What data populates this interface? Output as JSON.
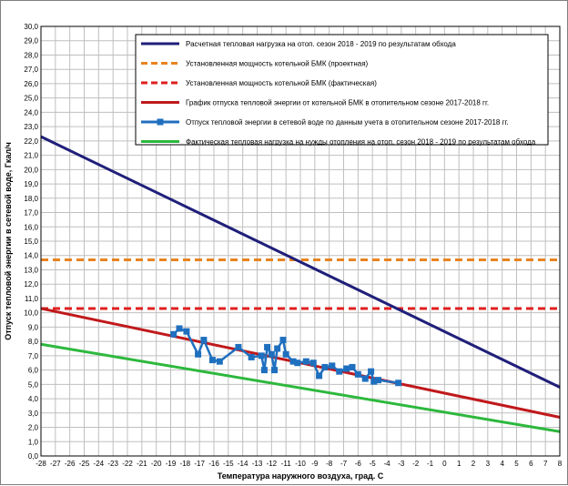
{
  "chart_data": {
    "type": "line",
    "title": "",
    "xlabel": "Температура наружного воздуха, град. С",
    "ylabel": "Отпуск тепловой энергии в сетевой воде, Гкал/ч",
    "xlim": [
      -28,
      8
    ],
    "ylim": [
      0,
      30
    ],
    "x_ticks": [
      "-28",
      "-27",
      "-26",
      "-25",
      "-24",
      "-23",
      "-22",
      "-21",
      "-20",
      "-19",
      "-18",
      "-17",
      "-16",
      "-15",
      "-14",
      "-13",
      "-12",
      "-11",
      "-10",
      "-9",
      "-8",
      "-7",
      "-6",
      "-5",
      "-4",
      "-3",
      "-2",
      "-1",
      "0",
      "1",
      "2",
      "3",
      "4",
      "5",
      "6",
      "7",
      "8"
    ],
    "y_ticks": [
      "0,0",
      "1,0",
      "2,0",
      "3,0",
      "4,0",
      "5,0",
      "6,0",
      "7,0",
      "8,0",
      "9,0",
      "10,0",
      "11,0",
      "12,0",
      "13,0",
      "14,0",
      "15,0",
      "16,0",
      "17,0",
      "18,0",
      "19,0",
      "20,0",
      "21,0",
      "22,0",
      "23,0",
      "24,0",
      "25,0",
      "26,0",
      "27,0",
      "28,0",
      "29,0",
      "30,0"
    ],
    "grid": true,
    "legend_position": "top-right",
    "series": [
      {
        "name": "Расчетная тепловая нагрузка на  отоп. сезон 2018 - 2019 по результатам обхода",
        "style": "solid",
        "color": "#1f1f7a",
        "x": [
          -28,
          8
        ],
        "y": [
          22.3,
          4.8
        ]
      },
      {
        "name": "Установленная мощность котельной БМК (проектная)",
        "style": "dashed",
        "color": "#e8831f",
        "x": [
          -28,
          8
        ],
        "y": [
          13.7,
          13.7
        ]
      },
      {
        "name": "Установленная мощность котельной БМК (фактическая)",
        "style": "dashed",
        "color": "#e01f1f",
        "x": [
          -28,
          8
        ],
        "y": [
          10.3,
          10.3
        ]
      },
      {
        "name": "График отпуска тепловой энергии от котельной БМК в отопительном сезоне 2017-2018 гг.",
        "style": "solid",
        "color": "#c0191c",
        "x": [
          -28,
          8
        ],
        "y": [
          10.3,
          2.7
        ]
      },
      {
        "name": "Отпуск тепловой энергии в сетевой воде по данным учета в отопительном сезоне 2017-2018 гг.",
        "style": "markers",
        "color": "#1f6fbf",
        "x": [
          -18.8,
          -18.4,
          -17.9,
          -17.1,
          -16.7,
          -16.1,
          -15.6,
          -14.3,
          -13.4,
          -12.7,
          -12.5,
          -12.3,
          -12.0,
          -11.8,
          -11.6,
          -11.2,
          -11.0,
          -10.5,
          -10.2,
          -9.6,
          -9.1,
          -8.7,
          -8.3,
          -7.8,
          -7.3,
          -6.8,
          -6.4,
          -6.0,
          -5.5,
          -5.1,
          -4.9,
          -4.6,
          -3.2
        ],
        "y": [
          8.5,
          8.9,
          8.7,
          7.1,
          8.1,
          6.7,
          6.6,
          7.6,
          6.9,
          7.0,
          6.0,
          7.6,
          7.1,
          6.0,
          7.5,
          8.1,
          7.1,
          6.6,
          6.5,
          6.6,
          6.5,
          5.6,
          6.2,
          6.3,
          5.9,
          6.1,
          6.2,
          5.7,
          5.4,
          5.9,
          5.2,
          5.3,
          5.1
        ]
      },
      {
        "name": "Фактическая тепловая нагрузка на нужды отопления на отоп. сезон 2018 - 2019 по результатам обхода",
        "style": "solid",
        "color": "#2db83d",
        "x": [
          -28,
          8
        ],
        "y": [
          7.8,
          1.7
        ]
      }
    ]
  }
}
